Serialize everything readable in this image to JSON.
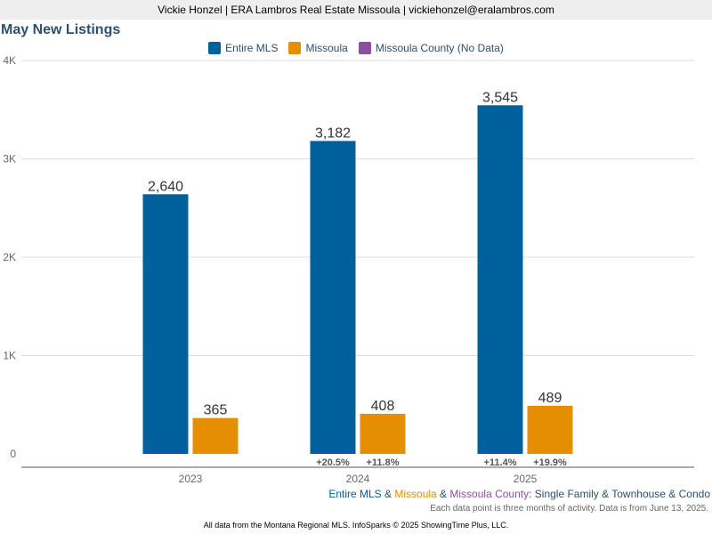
{
  "header": {
    "agent_line": "Vickie Honzel | ERA Lambros Real Estate Missoula | vickiehonzel@eralambros.com"
  },
  "colors": {
    "entire_mls": "#00609c",
    "missoula": "#e58f00",
    "missoula_county": "#8e4ea0",
    "title": "#2d4f6e",
    "grid": "#dddddd",
    "axis_text": "#666666"
  },
  "chart_data": {
    "type": "bar",
    "title": "May New Listings",
    "categories": [
      "2023",
      "2024",
      "2025"
    ],
    "series": [
      {
        "name": "Entire MLS",
        "values": [
          2640,
          3182,
          3545
        ],
        "labels": [
          "2,640",
          "3,182",
          "3,545"
        ],
        "changes": [
          "",
          "+20.5%",
          "+11.4%"
        ]
      },
      {
        "name": "Missoula",
        "values": [
          365,
          408,
          489
        ],
        "labels": [
          "365",
          "408",
          "489"
        ],
        "changes": [
          "",
          "+11.8%",
          "+19.9%"
        ]
      },
      {
        "name": "Missoula County (No Data)",
        "values": [
          null,
          null,
          null
        ],
        "labels": [
          "",
          "",
          ""
        ],
        "changes": [
          "",
          "",
          ""
        ]
      }
    ],
    "ylim": [
      0,
      4000
    ],
    "yticks": [
      0,
      1000,
      2000,
      3000,
      4000
    ],
    "ytick_labels": [
      "0",
      "1K",
      "2K",
      "3K",
      "4K"
    ],
    "grid": true,
    "legend_position": "top-center"
  },
  "subtitle": {
    "part1": "Entire MLS",
    "sep1": " & ",
    "part2": "Missoula",
    "sep2": " & ",
    "part3": "Missoula County",
    "rest": ": Single Family & Townhouse & Condo"
  },
  "note": "Each data point is three months of activity. Data is from June 13, 2025.",
  "footer": "All data from the Montana Regional MLS. InfoSparks © 2025 ShowingTime Plus, LLC."
}
